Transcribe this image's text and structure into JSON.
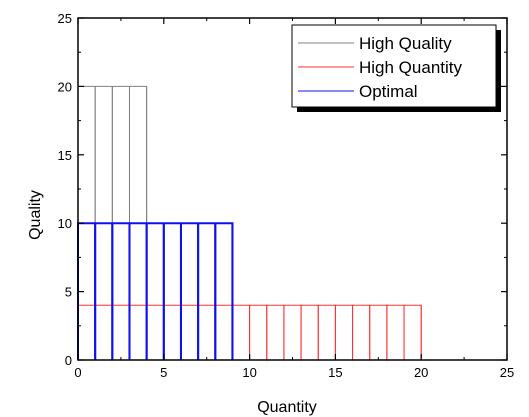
{
  "chart_data": {
    "type": "bar",
    "xlabel": "Quantity",
    "ylabel": "Quality",
    "xlim": [
      0,
      25
    ],
    "ylim": [
      0,
      25
    ],
    "xticks": [
      0,
      5,
      10,
      15,
      20,
      25
    ],
    "yticks": [
      0,
      5,
      10,
      15,
      20,
      25
    ],
    "grid": false,
    "legend_position": "top-right",
    "series": [
      {
        "name": "High Quality",
        "color": "#808080",
        "x": [
          1,
          2,
          3,
          4
        ],
        "values": [
          20,
          20,
          20,
          20
        ]
      },
      {
        "name": "High Quantity",
        "color": "#ff3030",
        "x": [
          1,
          2,
          3,
          4,
          5,
          6,
          7,
          8,
          9,
          10,
          11,
          12,
          13,
          14,
          15,
          16,
          17,
          18,
          19,
          20
        ],
        "values": [
          4,
          4,
          4,
          4,
          4,
          4,
          4,
          4,
          4,
          4,
          4,
          4,
          4,
          4,
          4,
          4,
          4,
          4,
          4,
          4
        ]
      },
      {
        "name": "Optimal",
        "color": "#1010ee",
        "x": [
          1,
          2,
          3,
          4,
          5,
          6,
          7,
          8,
          9
        ],
        "values": [
          10,
          10,
          10,
          10,
          10,
          10,
          10,
          10,
          10
        ]
      }
    ]
  }
}
